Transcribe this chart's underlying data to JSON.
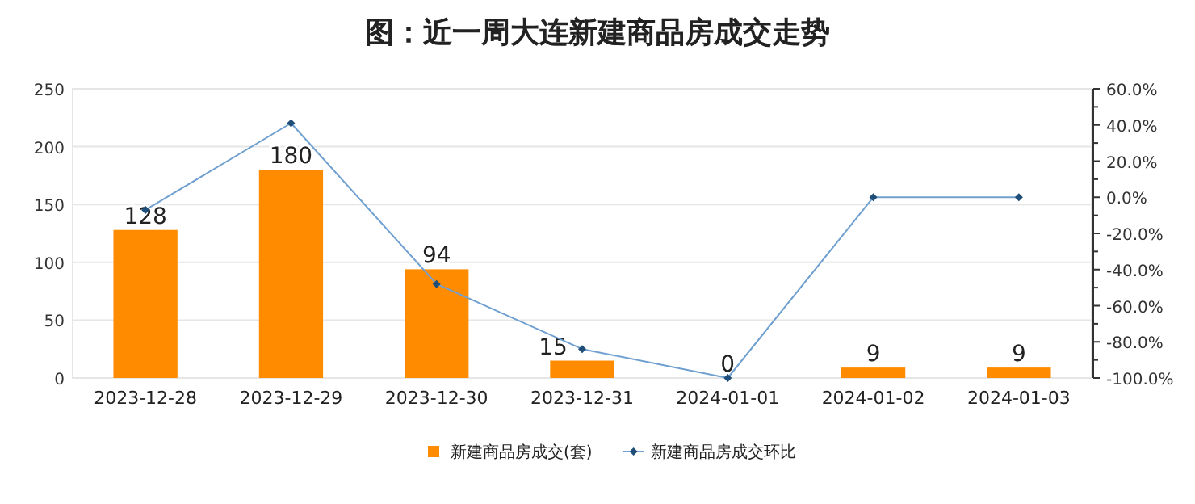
{
  "chart_data": {
    "type": "bar",
    "title": "图：近一周大连新建商品房成交走势",
    "categories": [
      "2023-12-28",
      "2023-12-29",
      "2023-12-30",
      "2023-12-31",
      "2024-01-01",
      "2024-01-02",
      "2024-01-03"
    ],
    "series": [
      {
        "name": "新建商品房成交(套)",
        "color": "#ff8c00",
        "values": [
          128,
          180,
          94,
          15,
          0,
          9,
          9
        ],
        "value_labels": [
          "128",
          "180",
          "94",
          "15",
          "0",
          "9",
          "9"
        ]
      },
      {
        "name": "新建商品房成交环比",
        "type": "line",
        "axis": "y2",
        "color": "#6fa0d0",
        "marker": "diamond",
        "values": [
          -7,
          41,
          -48,
          -84,
          -100,
          0,
          0
        ]
      }
    ],
    "ylim": [
      0,
      250
    ],
    "yticks": [
      0,
      50,
      100,
      150,
      200,
      250
    ],
    "y2lim": [
      -100,
      60
    ],
    "y2ticks": [
      {
        "value": -100,
        "label": "-100.0%"
      },
      {
        "value": -80,
        "label": "-80.0%"
      },
      {
        "value": -60,
        "label": "-60.0%"
      },
      {
        "value": -40,
        "label": "-40.0%"
      },
      {
        "value": -20,
        "label": "-20.0%"
      },
      {
        "value": 0,
        "label": "0.0%"
      },
      {
        "value": 20,
        "label": "20.0%"
      },
      {
        "value": 40,
        "label": "40.0%"
      },
      {
        "value": 60,
        "label": "60.0%"
      }
    ],
    "grid": "y",
    "legend": "bottom"
  }
}
